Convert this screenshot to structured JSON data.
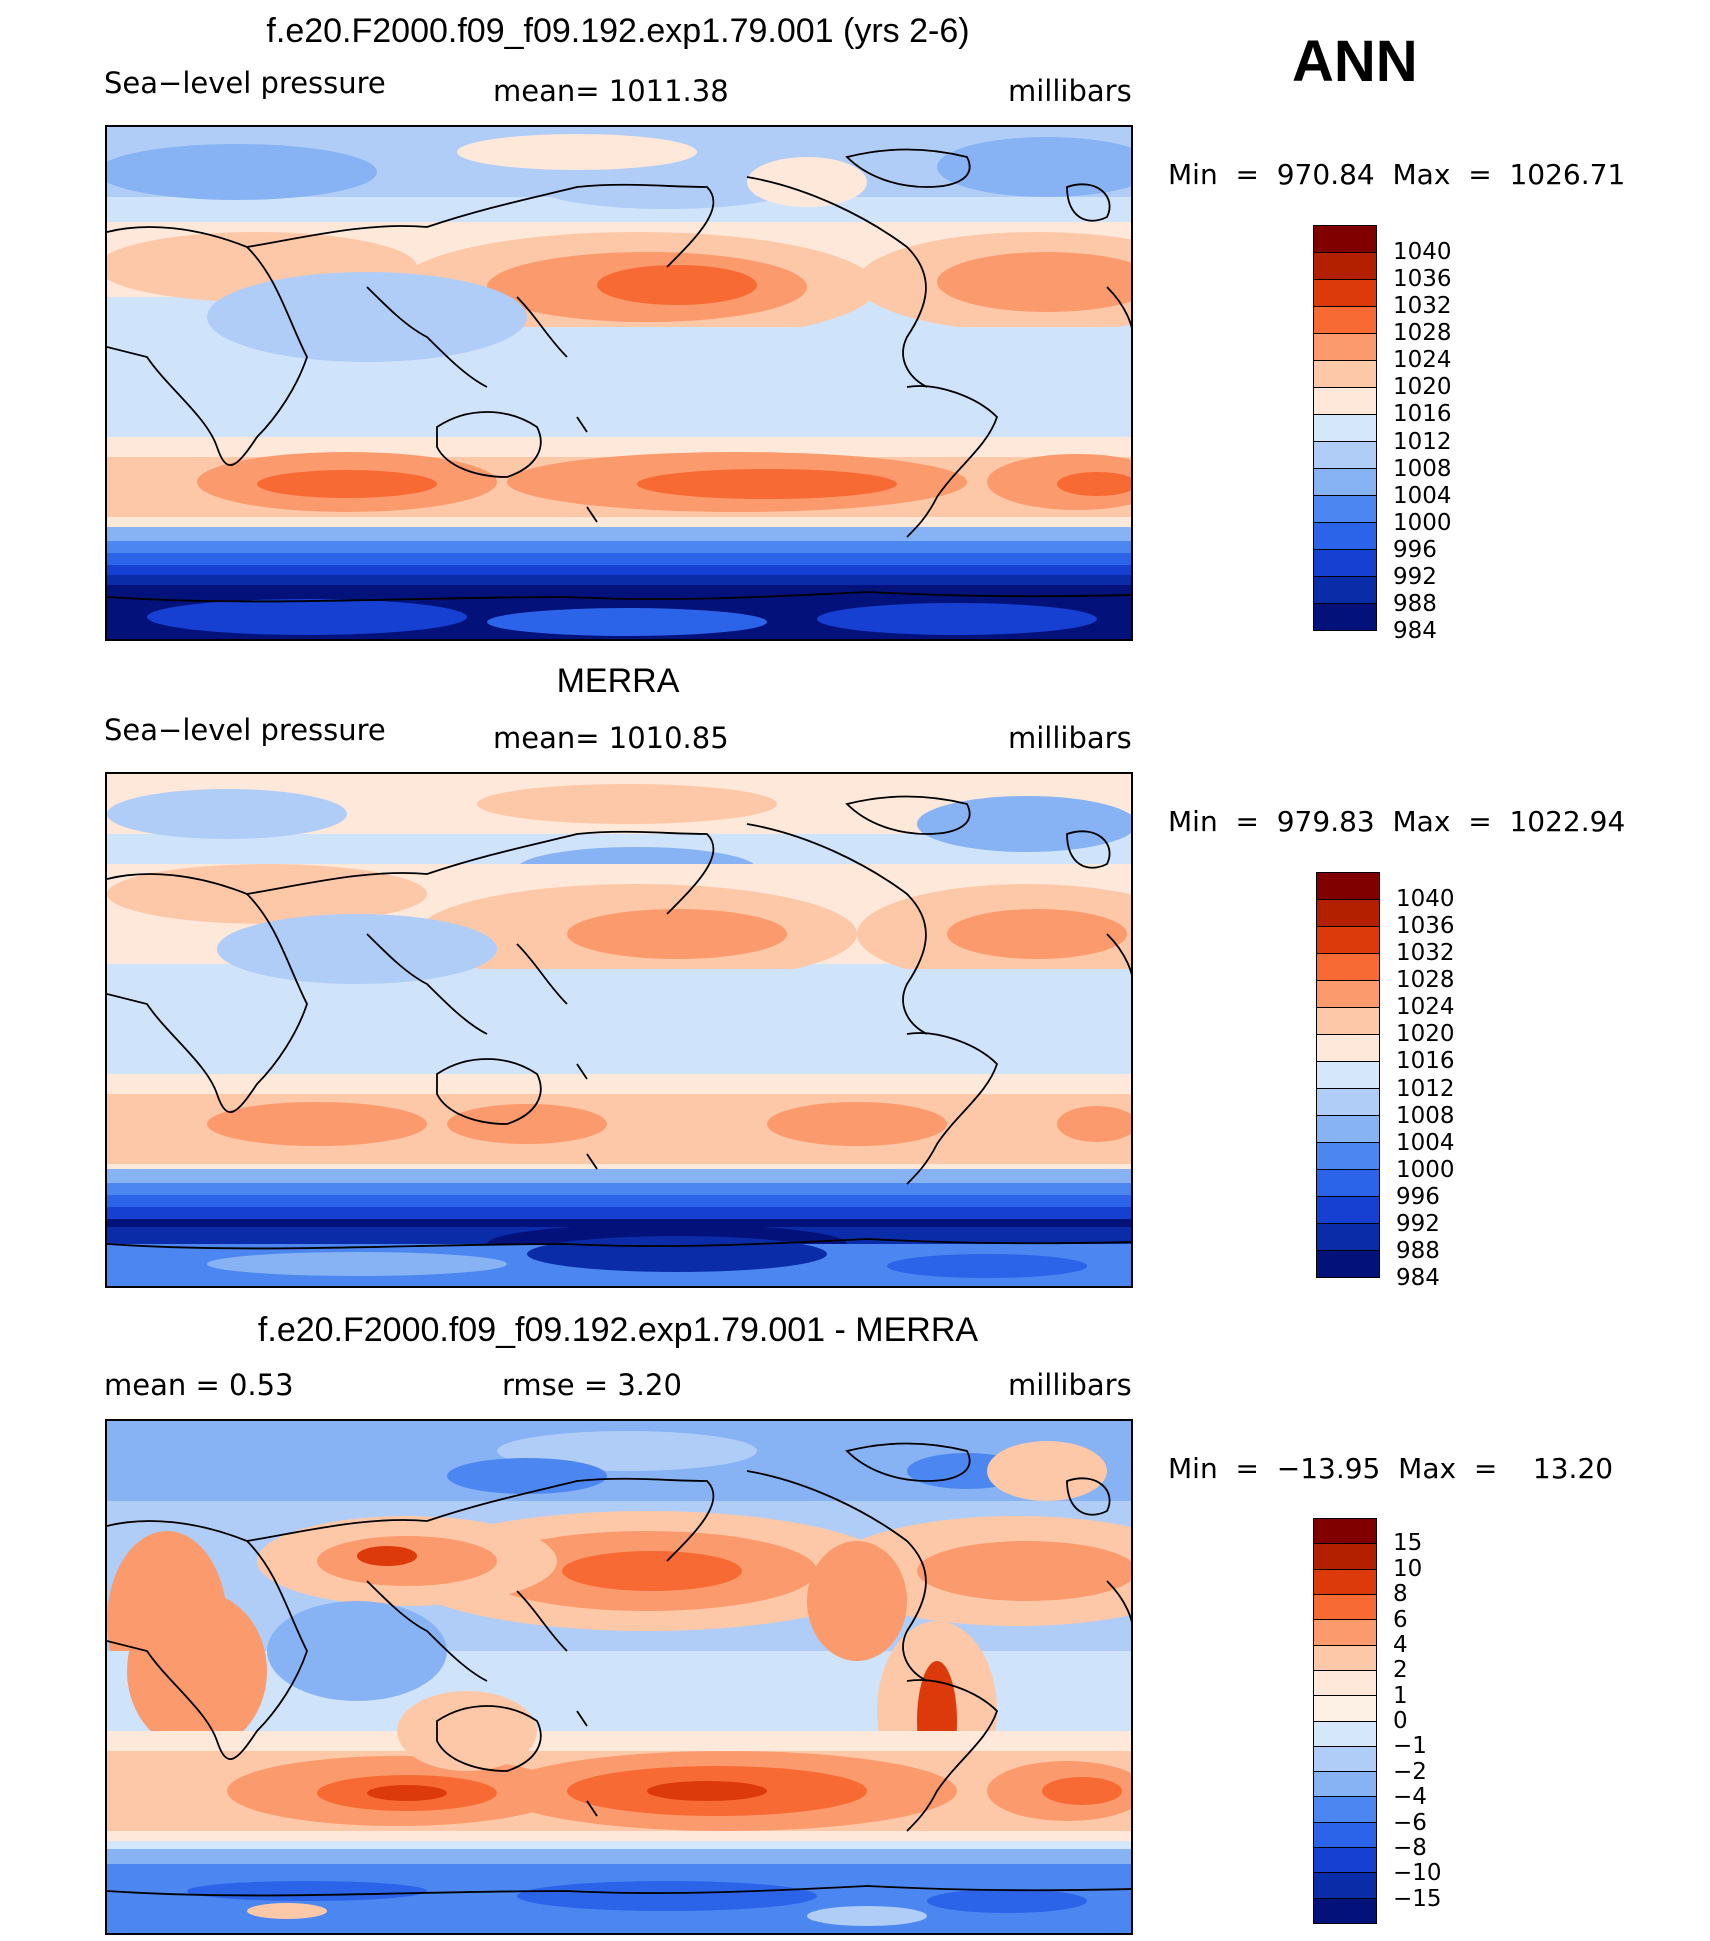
{
  "season": "ANN",
  "colors": {
    "ocean_base_blue": "#cfe3fb",
    "coast": "#000000"
  },
  "panels": [
    {
      "id": "model",
      "title": "f.e20.F2000.f09_f09.192.exp1.79.001 (yrs 2-6)",
      "left_label": "Sea−level pressure",
      "center_label": "mean=  1011.38",
      "right_label": "millibars",
      "minmax": "Min  =  970.84  Max  =  1026.71",
      "colorbar_colors": [
        "#800000",
        "#b32000",
        "#dc3a0a",
        "#f76a34",
        "#fb9a6c",
        "#fdc8a8",
        "#fde8da",
        "#d4e7fb",
        "#b0cdf7",
        "#87b2f4",
        "#4c86f0",
        "#2b63e9",
        "#1540d2",
        "#0a2ca8",
        "#03127a"
      ],
      "colorbar_labels": [
        "1040",
        "1036",
        "1032",
        "1028",
        "1024",
        "1020",
        "1016",
        "1012",
        "1008",
        "1004",
        "1000",
        "996",
        "992",
        "988",
        "984"
      ]
    },
    {
      "id": "obs",
      "title": "MERRA",
      "left_label": "Sea−level pressure",
      "center_label": "mean=  1010.85",
      "right_label": "millibars",
      "minmax": "Min  =  979.83  Max  =  1022.94",
      "colorbar_colors": [
        "#800000",
        "#b32000",
        "#dc3a0a",
        "#f76a34",
        "#fb9a6c",
        "#fdc8a8",
        "#fde8da",
        "#d4e7fb",
        "#b0cdf7",
        "#87b2f4",
        "#4c86f0",
        "#2b63e9",
        "#1540d2",
        "#0a2ca8",
        "#03127a"
      ],
      "colorbar_labels": [
        "1040",
        "1036",
        "1032",
        "1028",
        "1024",
        "1020",
        "1016",
        "1012",
        "1008",
        "1004",
        "1000",
        "996",
        "992",
        "988",
        "984"
      ]
    },
    {
      "id": "diff",
      "title": "f.e20.F2000.f09_f09.192.exp1.79.001 - MERRA",
      "left_label": "mean  =      0.53",
      "center_label": "rmse  =      3.20",
      "right_label": "millibars",
      "minmax": "Min  =  −13.95  Max  =    13.20",
      "colorbar_colors": [
        "#800000",
        "#b32000",
        "#dc3a0a",
        "#f76a34",
        "#fb9a6c",
        "#fdc8a8",
        "#fde8da",
        "#fdf1e6",
        "#d4e7fb",
        "#b0cdf7",
        "#87b2f4",
        "#4c86f0",
        "#2b63e9",
        "#1540d2",
        "#0a2ca8",
        "#03127a"
      ],
      "colorbar_labels": [
        "15",
        "10",
        "8",
        "6",
        "4",
        "2",
        "1",
        "0",
        "−1",
        "−2",
        "−4",
        "−6",
        "−8",
        "−10",
        "−15"
      ]
    }
  ]
}
